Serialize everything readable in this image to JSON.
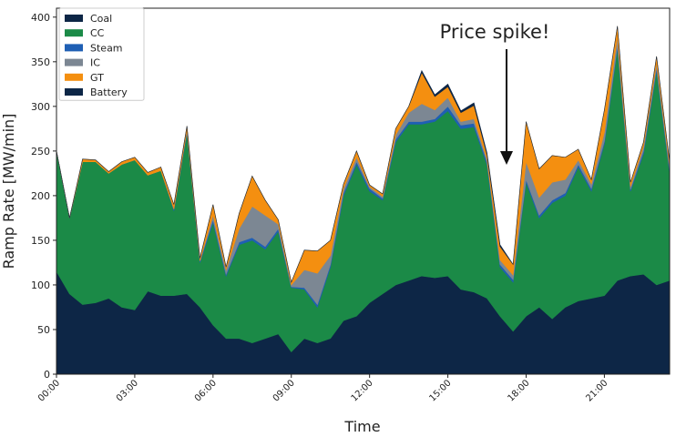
{
  "chart_data": {
    "type": "stackplot",
    "annotation": "Price spike!",
    "xlabel": "Time",
    "ylabel": "Ramp Rate [MW/min]",
    "x": [
      0,
      0.5,
      1,
      1.5,
      2,
      2.5,
      3,
      3.5,
      4,
      4.5,
      5,
      5.5,
      6,
      6.5,
      7,
      7.5,
      8,
      8.5,
      9,
      9.5,
      10,
      10.5,
      11,
      11.5,
      12,
      12.5,
      13,
      13.5,
      14,
      14.5,
      15,
      15.5,
      16,
      16.5,
      17,
      17.5,
      18,
      18.5,
      19,
      19.5,
      20,
      20.5,
      21,
      21.5,
      22,
      22.5,
      23,
      23.5
    ],
    "xlim": [
      0,
      23.5
    ],
    "xticks": [
      {
        "value": 0,
        "label": "00:00"
      },
      {
        "value": 3,
        "label": "03:00"
      },
      {
        "value": 6,
        "label": "06:00"
      },
      {
        "value": 9,
        "label": "09:00"
      },
      {
        "value": 12,
        "label": "12:00"
      },
      {
        "value": 15,
        "label": "15:00"
      },
      {
        "value": 18,
        "label": "18:00"
      },
      {
        "value": 21,
        "label": "21:00"
      }
    ],
    "ylim": [
      0,
      410
    ],
    "yticks": [
      0,
      50,
      100,
      150,
      200,
      250,
      300,
      350,
      400
    ],
    "legend": "upper left",
    "series": [
      {
        "name": "Coal",
        "color": "#0d2646",
        "values": [
          115,
          90,
          78,
          80,
          85,
          75,
          72,
          93,
          88,
          88,
          90,
          75,
          55,
          40,
          40,
          35,
          40,
          45,
          25,
          40,
          35,
          40,
          60,
          65,
          80,
          90,
          100,
          105,
          110,
          108,
          110,
          95,
          92,
          85,
          65,
          48,
          65,
          75,
          62,
          75,
          82,
          85,
          88,
          105,
          110,
          112,
          100,
          105
        ]
      },
      {
        "name": "CC",
        "color": "#1b8a47",
        "values": [
          135,
          85,
          160,
          158,
          140,
          160,
          168,
          130,
          140,
          95,
          180,
          50,
          115,
          70,
          105,
          115,
          100,
          115,
          72,
          55,
          40,
          80,
          140,
          170,
          125,
          105,
          160,
          175,
          170,
          175,
          185,
          180,
          185,
          150,
          55,
          55,
          150,
          100,
          130,
          125,
          150,
          120,
          170,
          260,
          95,
          135,
          240,
          120
        ]
      },
      {
        "name": "Steam",
        "color": "#1f5fb4",
        "values": [
          0,
          0,
          0,
          0,
          0,
          0,
          0,
          0,
          0,
          2,
          3,
          2,
          3,
          2,
          3,
          3,
          3,
          3,
          1,
          2,
          3,
          3,
          3,
          3,
          3,
          2,
          3,
          3,
          3,
          3,
          5,
          4,
          4,
          3,
          3,
          3,
          3,
          3,
          3,
          3,
          3,
          3,
          3,
          3,
          2,
          3,
          3,
          3
        ]
      },
      {
        "name": "IC",
        "color": "#7c8793",
        "values": [
          0,
          0,
          0,
          0,
          0,
          0,
          0,
          0,
          0,
          0,
          0,
          0,
          5,
          5,
          15,
          35,
          35,
          5,
          2,
          20,
          35,
          10,
          5,
          5,
          2,
          2,
          5,
          10,
          20,
          10,
          10,
          4,
          5,
          3,
          5,
          5,
          20,
          20,
          20,
          15,
          5,
          5,
          10,
          10,
          3,
          5,
          5,
          5
        ]
      },
      {
        "name": "GT",
        "color": "#f48f10",
        "values": [
          0,
          0,
          3,
          2,
          2,
          3,
          3,
          3,
          4,
          5,
          5,
          3,
          12,
          3,
          17,
          34,
          17,
          5,
          3,
          22,
          25,
          17,
          5,
          7,
          2,
          3,
          7,
          7,
          35,
          15,
          12,
          10,
          15,
          5,
          15,
          12,
          45,
          32,
          30,
          25,
          12,
          5,
          25,
          12,
          5,
          5,
          8,
          5
        ]
      },
      {
        "name": "Battery",
        "color": "#0d2646",
        "values": [
          0,
          0,
          0,
          0,
          0,
          0,
          0,
          0,
          0,
          0,
          0,
          0,
          0,
          0,
          0,
          0,
          0,
          0,
          0,
          0,
          0,
          0,
          0,
          0,
          0,
          0,
          0,
          0,
          2,
          2,
          3,
          2,
          3,
          2,
          2,
          0,
          0,
          0,
          0,
          0,
          0,
          0,
          0,
          0,
          0,
          0,
          0,
          0
        ]
      }
    ]
  }
}
